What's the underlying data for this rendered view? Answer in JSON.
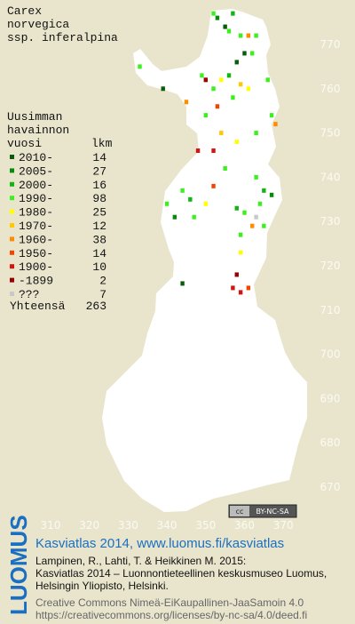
{
  "title_lines": [
    "Carex",
    "norvegica",
    "ssp. inferalpina"
  ],
  "legend": {
    "header_lines": [
      "Uusimman",
      "havainnon"
    ],
    "col_year": "vuosi",
    "col_count": "lkm",
    "entries": [
      {
        "label": "2010-",
        "count": "14",
        "color": "#0a5c0a"
      },
      {
        "label": "2005-",
        "count": "27",
        "color": "#0a8a0a"
      },
      {
        "label": "2000-",
        "count": "16",
        "color": "#14b414"
      },
      {
        "label": "1990-",
        "count": "98",
        "color": "#3cf01e"
      },
      {
        "label": "1980-",
        "count": "25",
        "color": "#ffff00"
      },
      {
        "label": "1970-",
        "count": "12",
        "color": "#ffc800"
      },
      {
        "label": "1960-",
        "count": "38",
        "color": "#ff8c00"
      },
      {
        "label": "1950-",
        "count": "14",
        "color": "#f04600"
      },
      {
        "label": "1900-",
        "count": "10",
        "color": "#d21414"
      },
      {
        "label": "-1899",
        "count": "2",
        "color": "#960000"
      },
      {
        "label": "???",
        "count": "7",
        "color": "#c8c8c8"
      }
    ],
    "total_label": "Yhteensä",
    "total": "263"
  },
  "x_ticks": [
    310,
    320,
    330,
    340,
    350,
    360,
    370
  ],
  "y_ticks": [
    770,
    760,
    750,
    740,
    730,
    720,
    710,
    700,
    690,
    680,
    670
  ],
  "points": [
    [
      352,
      777,
      3
    ],
    [
      353,
      776,
      1
    ],
    [
      355,
      774,
      0
    ],
    [
      356,
      773,
      3
    ],
    [
      357,
      777,
      2
    ],
    [
      359,
      772,
      3
    ],
    [
      361,
      772,
      6
    ],
    [
      363,
      772,
      3
    ],
    [
      360,
      768,
      0
    ],
    [
      362,
      768,
      3
    ],
    [
      358,
      766,
      0
    ],
    [
      356,
      763,
      2
    ],
    [
      354,
      762,
      4
    ],
    [
      352,
      760,
      3
    ],
    [
      350,
      762,
      9
    ],
    [
      349,
      763,
      3
    ],
    [
      345,
      757,
      6
    ],
    [
      350,
      754,
      3
    ],
    [
      353,
      756,
      7
    ],
    [
      357,
      758,
      3
    ],
    [
      359,
      761,
      5
    ],
    [
      361,
      760,
      4
    ],
    [
      366,
      762,
      3
    ],
    [
      367,
      754,
      3
    ],
    [
      368,
      752,
      6
    ],
    [
      363,
      750,
      3
    ],
    [
      358,
      748,
      4
    ],
    [
      354,
      750,
      5
    ],
    [
      339,
      760,
      0
    ],
    [
      333,
      765,
      3
    ],
    [
      348,
      746,
      8
    ],
    [
      352,
      746,
      8
    ],
    [
      363,
      740,
      3
    ],
    [
      365,
      737,
      2
    ],
    [
      367,
      736,
      1
    ],
    [
      364,
      734,
      3
    ],
    [
      363,
      731,
      10
    ],
    [
      365,
      729,
      3
    ],
    [
      362,
      729,
      6
    ],
    [
      360,
      732,
      3
    ],
    [
      358,
      733,
      2
    ],
    [
      359,
      727,
      3
    ],
    [
      359,
      723,
      4
    ],
    [
      358,
      718,
      9
    ],
    [
      357,
      715,
      8
    ],
    [
      359,
      714,
      8
    ],
    [
      361,
      715,
      7
    ],
    [
      344,
      737,
      3
    ],
    [
      346,
      735,
      2
    ],
    [
      340,
      734,
      3
    ],
    [
      342,
      731,
      1
    ],
    [
      347,
      731,
      3
    ],
    [
      350,
      734,
      4
    ],
    [
      344,
      716,
      0
    ],
    [
      352,
      738,
      7
    ],
    [
      355,
      742,
      3
    ]
  ],
  "license_badge": "BY-NC-SA",
  "logo": "LUOMUS",
  "footer": {
    "heading": "Kasviatlas 2014, www.luomus.fi/kasviatlas",
    "lines": [
      "Lampinen, R., Lahti, T. & Heikkinen M. 2015:",
      "Kasviatlas 2014 – Luonnontieteellinen keskusmuseo Luomus,",
      "Helsingin Yliopisto, Helsinki."
    ],
    "license_lines": [
      "Creative Commons Nimeä-EiKaupallinen-JaaSamoin 4.0",
      "https://creativecommons.org/licenses/by-nc-sa/4.0/deed.fi"
    ]
  }
}
